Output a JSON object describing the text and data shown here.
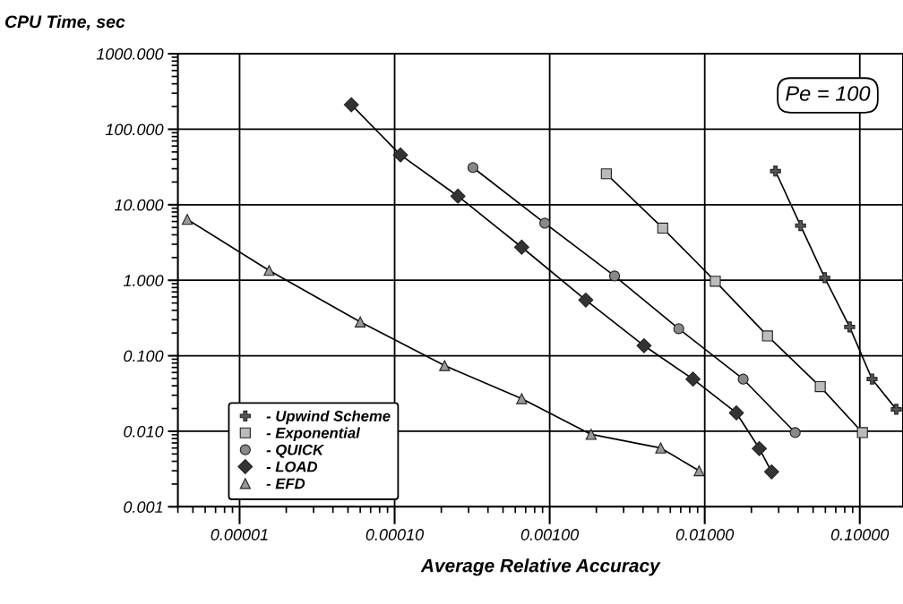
{
  "chart_data": {
    "type": "line",
    "ylabel": "CPU Time, sec",
    "xlabel": "Average Relative Accuracy",
    "log": "xy",
    "grid": true,
    "legend": "bottom left",
    "line_style": "solid",
    "xlim": [
      4e-06,
      0.19
    ],
    "xticks": [
      {
        "value": 1e-05,
        "label": "0.00001"
      },
      {
        "value": 0.0001,
        "label": "0.00010"
      },
      {
        "value": 0.001,
        "label": "0.00100"
      },
      {
        "value": 0.01,
        "label": "0.01000"
      },
      {
        "value": 0.1,
        "label": "0.10000"
      }
    ],
    "ylim": [
      0.001,
      1000
    ],
    "yticks": [
      {
        "value": 0.001,
        "label": "0.001"
      },
      {
        "value": 0.01,
        "label": "0.010"
      },
      {
        "value": 0.1,
        "label": "0.100"
      },
      {
        "value": 1,
        "label": "1.000"
      },
      {
        "value": 10,
        "label": "10.000"
      },
      {
        "value": 100,
        "label": "100.000"
      },
      {
        "value": 1000,
        "label": "1000.000"
      }
    ],
    "annotations": [
      "Pe = 100"
    ],
    "series": [
      {
        "name": "- Upwind Scheme",
        "color": "#555555",
        "marker": "cross",
        "x": [
          0.0286,
          0.0415,
          0.0594,
          0.086,
          0.12,
          0.172
        ],
        "values": [
          27.9,
          5.3,
          1.08,
          0.241,
          0.049,
          0.0195
        ]
      },
      {
        "name": "- Exponential",
        "color": "#bbbbbb",
        "marker": "square",
        "x": [
          0.00232,
          0.00536,
          0.0117,
          0.0254,
          0.0556,
          0.104
        ],
        "values": [
          25.7,
          4.9,
          0.97,
          0.183,
          0.039,
          0.0096
        ]
      },
      {
        "name": "- QUICK",
        "color": "#888888",
        "marker": "circle",
        "x": [
          0.00032,
          0.00093,
          0.00262,
          0.0068,
          0.0177,
          0.0383
        ],
        "values": [
          31.1,
          5.7,
          1.14,
          0.228,
          0.049,
          0.0096
        ]
      },
      {
        "name": "- LOAD",
        "color": "#333333",
        "marker": "diamond",
        "x": [
          5.26e-05,
          0.000109,
          0.000256,
          0.00066,
          0.00171,
          0.00406,
          0.0084,
          0.016,
          0.0225,
          0.027
        ],
        "values": [
          211,
          45.7,
          13.0,
          2.74,
          0.547,
          0.136,
          0.049,
          0.0175,
          0.0059,
          0.0029
        ]
      },
      {
        "name": "- EFD",
        "color": "#999999",
        "marker": "triangle",
        "x": [
          4.6e-06,
          1.55e-05,
          6e-05,
          0.00021,
          0.00066,
          0.00185,
          0.0052,
          0.0092
        ],
        "values": [
          6.4,
          1.35,
          0.28,
          0.074,
          0.027,
          0.0091,
          0.006,
          0.003
        ]
      }
    ]
  }
}
